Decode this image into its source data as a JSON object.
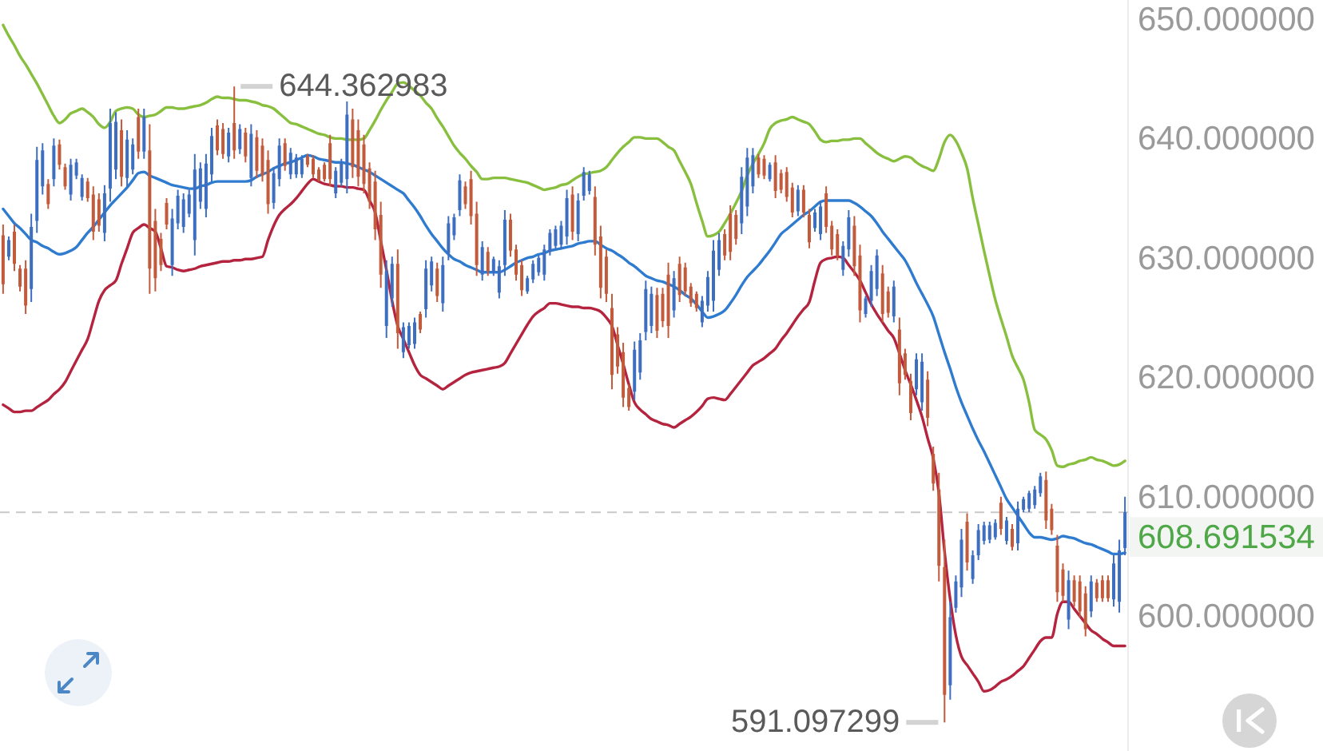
{
  "chart_data": {
    "type": "candlestick",
    "categories": [
      null,
      null,
      null,
      null,
      null,
      null,
      null,
      null,
      null,
      null,
      null,
      null,
      null,
      null,
      null,
      null,
      null,
      null,
      null,
      null,
      null,
      null,
      null,
      null,
      null,
      null,
      null,
      null,
      null,
      null,
      null,
      null,
      null,
      null,
      null,
      null,
      null,
      null,
      null,
      null,
      null,
      null,
      null,
      null,
      null,
      null,
      null,
      null,
      null,
      null,
      null,
      null,
      null,
      null,
      null,
      null,
      null,
      null,
      null,
      null,
      null,
      null,
      null,
      null,
      null,
      null,
      null,
      null,
      null,
      null,
      null,
      null,
      null,
      null,
      null,
      null,
      null,
      null,
      null,
      null,
      null,
      null,
      null,
      null,
      null,
      null,
      null,
      null,
      null,
      null,
      null,
      null,
      null,
      null,
      null,
      null,
      null,
      null,
      null,
      null,
      null,
      null,
      null,
      null,
      null,
      null,
      null,
      null,
      null,
      null,
      null,
      null,
      null,
      null,
      null,
      null,
      null,
      null,
      null,
      null,
      null,
      null,
      null,
      null,
      null,
      null,
      null,
      null,
      null,
      null,
      null,
      null,
      null,
      null,
      null,
      null,
      null,
      null,
      null,
      null,
      null,
      null,
      null,
      null,
      null,
      null,
      null,
      null,
      null,
      null,
      null,
      null,
      null,
      null,
      null,
      null,
      null,
      null,
      null,
      null,
      null,
      null,
      null,
      null,
      null,
      null,
      null,
      null,
      null,
      null,
      null,
      null,
      null,
      null,
      null,
      null,
      null,
      null,
      null,
      null,
      null,
      null,
      null,
      null,
      null,
      null,
      null,
      null,
      null,
      null,
      null,
      null,
      null,
      null,
      null,
      null,
      null,
      null,
      null,
      null
    ],
    "ohlc": [
      [
        631.9,
        632.8,
        627.0,
        627.8
      ],
      [
        630.1,
        631.8,
        629.8,
        631.5
      ],
      [
        632.2,
        632.8,
        628.9,
        629.5
      ],
      [
        629.1,
        629.4,
        627.2,
        627.6
      ],
      [
        629.1,
        629.8,
        625.3,
        626.0
      ],
      [
        627.4,
        633.7,
        626.3,
        632.6
      ],
      [
        633.1,
        639.3,
        632.1,
        638.2
      ],
      [
        636.0,
        639.6,
        635.3,
        639.0
      ],
      [
        636.2,
        636.6,
        634.1,
        634.5
      ],
      [
        636.6,
        640.0,
        636.0,
        639.4
      ],
      [
        639.5,
        639.9,
        637.4,
        637.8
      ],
      [
        637.6,
        637.9,
        635.7,
        636.0
      ],
      [
        635.3,
        638.3,
        634.8,
        637.8
      ],
      [
        636.9,
        638.3,
        636.6,
        638.0
      ],
      [
        635.1,
        637.0,
        634.8,
        636.7
      ],
      [
        636.4,
        636.7,
        634.7,
        635.0
      ],
      [
        635.3,
        636.0,
        631.5,
        632.2
      ],
      [
        634.9,
        635.4,
        632.2,
        632.7
      ],
      [
        632.1,
        636.1,
        631.4,
        635.4
      ],
      [
        635.8,
        642.5,
        634.7,
        641.3
      ],
      [
        637.4,
        642.2,
        636.6,
        641.4
      ],
      [
        640.7,
        641.6,
        636.0,
        636.8
      ],
      [
        636.7,
        640.7,
        636.0,
        639.9
      ],
      [
        637.4,
        640.0,
        637.0,
        639.5
      ],
      [
        641.8,
        642.5,
        638.3,
        638.9
      ],
      [
        638.9,
        642.5,
        638.3,
        641.8
      ],
      [
        639.0,
        641.2,
        627.0,
        629.1
      ],
      [
        633.1,
        634.1,
        627.2,
        628.3
      ],
      [
        631.6,
        632.1,
        628.9,
        629.4
      ],
      [
        634.6,
        635.0,
        632.4,
        632.8
      ],
      [
        629.4,
        634.1,
        628.5,
        633.3
      ],
      [
        632.9,
        635.7,
        632.4,
        635.2
      ],
      [
        632.6,
        635.4,
        632.1,
        634.9
      ],
      [
        633.7,
        635.7,
        633.4,
        635.3
      ],
      [
        631.5,
        638.7,
        630.2,
        637.4
      ],
      [
        634.7,
        638.0,
        634.1,
        637.5
      ],
      [
        634.1,
        638.7,
        633.4,
        637.9
      ],
      [
        637.0,
        640.9,
        636.4,
        640.2
      ],
      [
        641.1,
        641.6,
        638.6,
        639.0
      ],
      [
        640.8,
        641.3,
        638.3,
        638.7
      ],
      [
        638.5,
        640.9,
        638.0,
        640.5
      ],
      [
        641.3,
        644.362983,
        638.3,
        639.0
      ],
      [
        639.1,
        641.2,
        638.7,
        640.8
      ],
      [
        640.5,
        640.9,
        638.0,
        638.5
      ],
      [
        636.7,
        641.2,
        636.0,
        640.4
      ],
      [
        640.1,
        640.7,
        636.7,
        637.3
      ],
      [
        639.4,
        640.0,
        636.4,
        636.9
      ],
      [
        638.2,
        639.0,
        633.7,
        634.5
      ],
      [
        634.6,
        637.6,
        634.1,
        637.1
      ],
      [
        636.6,
        640.0,
        636.0,
        639.4
      ],
      [
        639.6,
        640.0,
        637.3,
        637.7
      ],
      [
        637.0,
        639.2,
        636.6,
        638.8
      ],
      [
        637.0,
        638.7,
        636.7,
        638.4
      ],
      [
        637.0,
        638.6,
        636.7,
        638.3
      ],
      [
        638.5,
        638.7,
        637.6,
        637.8
      ],
      [
        638.3,
        638.6,
        636.7,
        637.0
      ],
      [
        637.4,
        637.6,
        636.4,
        636.5
      ],
      [
        637.8,
        638.0,
        636.4,
        636.6
      ],
      [
        639.6,
        640.3,
        636.0,
        636.6
      ],
      [
        635.4,
        637.6,
        635.0,
        637.3
      ],
      [
        636.3,
        638.3,
        636.0,
        637.9
      ],
      [
        636.6,
        643.1,
        635.4,
        642.0
      ],
      [
        641.6,
        642.5,
        636.7,
        637.6
      ],
      [
        640.7,
        641.6,
        636.0,
        636.8
      ],
      [
        639.5,
        640.3,
        635.4,
        636.2
      ],
      [
        637.5,
        638.0,
        634.1,
        634.7
      ],
      [
        636.4,
        637.3,
        631.5,
        632.4
      ],
      [
        633.6,
        634.7,
        627.5,
        628.6
      ],
      [
        624.3,
        629.8,
        623.3,
        628.9
      ],
      [
        626.6,
        630.1,
        625.9,
        629.5
      ],
      [
        629.5,
        630.7,
        622.4,
        623.7
      ],
      [
        622.1,
        624.6,
        621.6,
        624.2
      ],
      [
        622.7,
        624.6,
        622.4,
        624.3
      ],
      [
        622.8,
        625.0,
        622.4,
        624.6
      ],
      [
        625.3,
        625.5,
        623.7,
        624.0
      ],
      [
        625.7,
        629.8,
        625.0,
        629.1
      ],
      [
        627.7,
        630.1,
        627.2,
        629.7
      ],
      [
        629.1,
        629.6,
        626.3,
        626.8
      ],
      [
        626.2,
        630.1,
        625.5,
        629.4
      ],
      [
        630.4,
        633.5,
        629.8,
        632.9
      ],
      [
        631.9,
        633.7,
        631.5,
        633.4
      ],
      [
        634.0,
        637.0,
        633.5,
        636.5
      ],
      [
        636.0,
        636.4,
        634.1,
        634.5
      ],
      [
        636.6,
        637.3,
        632.8,
        633.5
      ],
      [
        633.7,
        634.7,
        628.5,
        629.4
      ],
      [
        628.6,
        631.4,
        628.1,
        630.9
      ],
      [
        630.5,
        630.9,
        628.5,
        628.9
      ],
      [
        628.8,
        630.1,
        628.5,
        629.9
      ],
      [
        627.1,
        629.8,
        626.6,
        629.3
      ],
      [
        629.4,
        634.0,
        628.5,
        633.2
      ],
      [
        633.2,
        633.7,
        630.1,
        630.6
      ],
      [
        630.7,
        631.1,
        628.1,
        628.6
      ],
      [
        629.4,
        629.8,
        626.8,
        627.3
      ],
      [
        627.2,
        628.5,
        627.0,
        628.3
      ],
      [
        628.2,
        629.8,
        627.9,
        629.5
      ],
      [
        628.8,
        630.2,
        628.5,
        630.0
      ],
      [
        628.6,
        631.1,
        628.1,
        630.7
      ],
      [
        630.5,
        632.4,
        630.2,
        632.1
      ],
      [
        631.0,
        632.7,
        630.7,
        632.4
      ],
      [
        631.1,
        633.1,
        630.7,
        632.7
      ],
      [
        631.8,
        635.7,
        631.1,
        635.0
      ],
      [
        635.3,
        636.0,
        631.5,
        632.2
      ],
      [
        632.0,
        635.4,
        631.4,
        634.8
      ],
      [
        635.2,
        637.6,
        634.8,
        637.2
      ],
      [
        635.6,
        637.3,
        635.3,
        637.0
      ],
      [
        635.1,
        636.0,
        630.2,
        631.1
      ],
      [
        631.8,
        632.7,
        626.6,
        627.5
      ],
      [
        630.1,
        630.7,
        626.3,
        627.0
      ],
      [
        625.8,
        627.0,
        619.0,
        620.2
      ],
      [
        623.6,
        624.2,
        620.3,
        620.9
      ],
      [
        622.1,
        622.9,
        617.5,
        618.3
      ],
      [
        619.1,
        619.4,
        617.2,
        617.5
      ],
      [
        618.8,
        623.0,
        618.1,
        622.3
      ],
      [
        620.4,
        623.7,
        619.8,
        623.1
      ],
      [
        623.8,
        628.1,
        623.1,
        627.4
      ],
      [
        624.3,
        627.6,
        623.7,
        627.0
      ],
      [
        626.9,
        627.5,
        623.3,
        623.9
      ],
      [
        627.0,
        627.5,
        624.2,
        624.7
      ],
      [
        628.6,
        629.6,
        623.3,
        624.3
      ],
      [
        625.6,
        628.9,
        625.0,
        628.3
      ],
      [
        629.5,
        630.1,
        626.3,
        626.9
      ],
      [
        629.2,
        629.6,
        626.8,
        627.2
      ],
      [
        627.6,
        627.9,
        625.9,
        626.2
      ],
      [
        627.0,
        627.2,
        625.5,
        625.8
      ],
      [
        624.6,
        626.8,
        624.2,
        626.4
      ],
      [
        626.0,
        628.9,
        625.5,
        628.4
      ],
      [
        626.4,
        631.5,
        625.5,
        630.6
      ],
      [
        629.0,
        632.1,
        628.5,
        631.5
      ],
      [
        632.0,
        632.4,
        629.8,
        630.2
      ],
      [
        633.7,
        634.4,
        629.8,
        630.5
      ],
      [
        633.6,
        634.0,
        631.1,
        631.6
      ],
      [
        632.9,
        637.6,
        632.0,
        636.8
      ],
      [
        634.3,
        639.2,
        633.5,
        638.4
      ],
      [
        636.0,
        639.2,
        635.4,
        638.6
      ],
      [
        638.4,
        638.7,
        636.7,
        637.0
      ],
      [
        638.3,
        638.6,
        636.6,
        636.9
      ],
      [
        636.6,
        638.0,
        636.4,
        637.8
      ],
      [
        638.0,
        638.6,
        635.0,
        635.6
      ],
      [
        637.1,
        637.4,
        635.4,
        635.7
      ],
      [
        637.2,
        637.6,
        634.7,
        635.1
      ],
      [
        635.9,
        636.3,
        633.4,
        633.8
      ],
      [
        633.9,
        636.1,
        633.5,
        635.7
      ],
      [
        635.7,
        636.1,
        633.4,
        633.8
      ],
      [
        633.6,
        634.1,
        630.8,
        631.3
      ],
      [
        632.5,
        634.1,
        632.2,
        633.8
      ],
      [
        632.0,
        634.8,
        631.5,
        634.3
      ],
      [
        635.4,
        636.0,
        632.1,
        632.6
      ],
      [
        632.7,
        633.1,
        630.2,
        630.7
      ],
      [
        632.0,
        632.4,
        629.8,
        630.2
      ],
      [
        629.0,
        631.4,
        628.5,
        631.0
      ],
      [
        630.7,
        634.0,
        630.1,
        633.4
      ],
      [
        632.7,
        633.5,
        628.5,
        629.3
      ],
      [
        630.2,
        631.1,
        624.6,
        625.6
      ],
      [
        625.3,
        626.8,
        625.0,
        626.6
      ],
      [
        626.4,
        629.4,
        625.9,
        628.9
      ],
      [
        627.4,
        630.7,
        626.8,
        630.2
      ],
      [
        628.7,
        629.4,
        624.6,
        625.3
      ],
      [
        627.2,
        627.6,
        625.0,
        625.4
      ],
      [
        625.1,
        628.1,
        624.6,
        627.6
      ],
      [
        624.0,
        625.0,
        618.5,
        619.5
      ],
      [
        622.0,
        622.4,
        619.8,
        620.2
      ],
      [
        619.7,
        620.3,
        616.4,
        617.0
      ],
      [
        619.0,
        622.0,
        618.5,
        621.5
      ],
      [
        617.9,
        622.0,
        617.2,
        621.3
      ],
      [
        619.8,
        620.5,
        615.9,
        616.6
      ],
      [
        613.6,
        614.2,
        610.5,
        611.1
      ],
      [
        610.6,
        612.0,
        602.9,
        604.2
      ],
      [
        604.1,
        606.4,
        591.097299,
        593.4
      ],
      [
        594.2,
        601.2,
        593.0,
        599.9
      ],
      [
        600.7,
        603.4,
        600.3,
        602.9
      ],
      [
        602.4,
        607.3,
        601.6,
        606.4
      ],
      [
        607.9,
        608.6,
        603.8,
        604.5
      ],
      [
        603.1,
        605.5,
        602.7,
        605.1
      ],
      [
        605.1,
        607.7,
        604.7,
        607.2
      ],
      [
        606.3,
        607.9,
        606.0,
        607.6
      ],
      [
        606.4,
        607.9,
        606.1,
        607.6
      ],
      [
        606.6,
        608.1,
        606.4,
        607.8
      ],
      [
        609.5,
        610.0,
        606.8,
        607.3
      ],
      [
        606.3,
        608.3,
        606.0,
        608.0
      ],
      [
        607.3,
        607.7,
        605.5,
        605.8
      ],
      [
        606.1,
        609.6,
        605.5,
        609.0
      ],
      [
        608.9,
        610.0,
        608.7,
        609.8
      ],
      [
        609.0,
        610.5,
        608.7,
        610.3
      ],
      [
        609.3,
        610.9,
        609.0,
        610.6
      ],
      [
        610.3,
        612.0,
        610.0,
        611.7
      ],
      [
        611.4,
        612.1,
        607.3,
        608.0
      ],
      [
        609.0,
        609.4,
        606.8,
        607.2
      ],
      [
        605.9,
        606.8,
        601.2,
        602.0
      ],
      [
        603.9,
        604.4,
        601.2,
        601.7
      ],
      [
        599.7,
        603.8,
        598.9,
        603.0
      ],
      [
        603.0,
        603.4,
        600.8,
        601.2
      ],
      [
        602.9,
        603.4,
        599.9,
        600.4
      ],
      [
        601.9,
        602.5,
        598.3,
        598.9
      ],
      [
        600.4,
        603.4,
        599.9,
        602.9
      ],
      [
        602.8,
        603.1,
        601.2,
        601.5
      ],
      [
        603.0,
        603.4,
        601.2,
        601.5
      ],
      [
        603.0,
        603.4,
        601.2,
        601.5
      ],
      [
        601.4,
        605.1,
        600.8,
        604.4
      ],
      [
        601.2,
        606.4,
        600.3,
        605.5
      ],
      [
        605.7,
        610.0,
        605.1,
        608.691534
      ]
    ],
    "colors": [
      "#c25a3c",
      "#3d6ec0",
      "#c25a3c",
      "#c25a3c",
      "#c25a3c",
      "#3d6ec0",
      "#3d6ec0",
      "#3d6ec0",
      "#c25a3c",
      "#3d6ec0",
      "#c25a3c",
      "#c25a3c",
      "#3d6ec0",
      "#3d6ec0",
      "#3d6ec0",
      "#c25a3c",
      "#c25a3c",
      "#c25a3c",
      "#3d6ec0",
      "#3d6ec0",
      "#3d6ec0",
      "#c25a3c",
      "#3d6ec0",
      "#3d6ec0",
      "#c25a3c",
      "#3d6ec0",
      "#c25a3c",
      "#c25a3c",
      "#c25a3c",
      "#c25a3c",
      "#3d6ec0",
      "#3d6ec0",
      "#3d6ec0",
      "#3d6ec0",
      "#3d6ec0",
      "#3d6ec0",
      "#3d6ec0",
      "#3d6ec0",
      "#c25a3c",
      "#c25a3c",
      "#3d6ec0",
      "#c25a3c",
      "#3d6ec0",
      "#c25a3c",
      "#3d6ec0",
      "#c25a3c",
      "#c25a3c",
      "#c25a3c",
      "#3d6ec0",
      "#3d6ec0",
      "#c25a3c",
      "#3d6ec0",
      "#3d6ec0",
      "#3d6ec0",
      "#c25a3c",
      "#c25a3c",
      "#c25a3c",
      "#c25a3c",
      "#c25a3c",
      "#3d6ec0",
      "#3d6ec0",
      "#3d6ec0",
      "#c25a3c",
      "#c25a3c",
      "#c25a3c",
      "#c25a3c",
      "#c25a3c",
      "#c25a3c",
      "#3d6ec0",
      "#3d6ec0",
      "#c25a3c",
      "#3d6ec0",
      "#3d6ec0",
      "#3d6ec0",
      "#c25a3c",
      "#3d6ec0",
      "#3d6ec0",
      "#c25a3c",
      "#3d6ec0",
      "#3d6ec0",
      "#3d6ec0",
      "#3d6ec0",
      "#c25a3c",
      "#c25a3c",
      "#c25a3c",
      "#3d6ec0",
      "#c25a3c",
      "#3d6ec0",
      "#3d6ec0",
      "#3d6ec0",
      "#c25a3c",
      "#c25a3c",
      "#c25a3c",
      "#3d6ec0",
      "#3d6ec0",
      "#3d6ec0",
      "#3d6ec0",
      "#3d6ec0",
      "#3d6ec0",
      "#3d6ec0",
      "#3d6ec0",
      "#c25a3c",
      "#3d6ec0",
      "#3d6ec0",
      "#3d6ec0",
      "#c25a3c",
      "#c25a3c",
      "#c25a3c",
      "#c25a3c",
      "#c25a3c",
      "#c25a3c",
      "#c25a3c",
      "#3d6ec0",
      "#3d6ec0",
      "#3d6ec0",
      "#3d6ec0",
      "#c25a3c",
      "#c25a3c",
      "#c25a3c",
      "#3d6ec0",
      "#c25a3c",
      "#c25a3c",
      "#c25a3c",
      "#c25a3c",
      "#3d6ec0",
      "#3d6ec0",
      "#3d6ec0",
      "#3d6ec0",
      "#c25a3c",
      "#c25a3c",
      "#c25a3c",
      "#3d6ec0",
      "#3d6ec0",
      "#3d6ec0",
      "#c25a3c",
      "#c25a3c",
      "#3d6ec0",
      "#c25a3c",
      "#c25a3c",
      "#c25a3c",
      "#c25a3c",
      "#3d6ec0",
      "#c25a3c",
      "#c25a3c",
      "#3d6ec0",
      "#3d6ec0",
      "#c25a3c",
      "#c25a3c",
      "#c25a3c",
      "#3d6ec0",
      "#3d6ec0",
      "#c25a3c",
      "#c25a3c",
      "#3d6ec0",
      "#3d6ec0",
      "#3d6ec0",
      "#c25a3c",
      "#c25a3c",
      "#3d6ec0",
      "#c25a3c",
      "#c25a3c",
      "#c25a3c",
      "#3d6ec0",
      "#3d6ec0",
      "#c25a3c",
      "#c25a3c",
      "#c25a3c",
      "#c25a3c",
      "#3d6ec0",
      "#3d6ec0",
      "#3d6ec0",
      "#c25a3c",
      "#3d6ec0",
      "#3d6ec0",
      "#3d6ec0",
      "#3d6ec0",
      "#3d6ec0",
      "#c25a3c",
      "#3d6ec0",
      "#c25a3c",
      "#3d6ec0",
      "#3d6ec0",
      "#3d6ec0",
      "#3d6ec0",
      "#3d6ec0",
      "#c25a3c",
      "#c25a3c",
      "#c25a3c",
      "#c25a3c",
      "#3d6ec0",
      "#c25a3c",
      "#c25a3c",
      "#c25a3c",
      "#3d6ec0",
      "#c25a3c",
      "#c25a3c",
      "#c25a3c",
      "#3d6ec0",
      "#3d6ec0",
      "#3d6ec0"
    ],
    "series": [
      {
        "type": "line",
        "color": "#88bf3e",
        "values": [
          649.5,
          648.6,
          647.8,
          646.9,
          646.2,
          645.4,
          644.6,
          643.7,
          642.8,
          641.9,
          641.3,
          641.6,
          642.1,
          642.3,
          642.5,
          642.2,
          641.8,
          641.2,
          640.9,
          641.4,
          642.3,
          642.5,
          642.6,
          642.5,
          642.0,
          641.8,
          641.9,
          642.0,
          642.3,
          642.6,
          642.6,
          642.5,
          642.5,
          642.6,
          642.7,
          642.8,
          643.0,
          643.3,
          643.5,
          643.4,
          643.4,
          643.3,
          643.2,
          643.2,
          643.1,
          643.0,
          642.8,
          642.7,
          642.5,
          642.1,
          641.7,
          641.3,
          641.2,
          641.0,
          640.8,
          640.6,
          640.4,
          640.3,
          640.1,
          640.0,
          640.0,
          639.9,
          639.9,
          639.9,
          640.0,
          640.7,
          641.5,
          642.4,
          643.2,
          643.9,
          644.6,
          644.7,
          644.4,
          644.0,
          643.6,
          643.0,
          642.5,
          641.7,
          641.0,
          640.2,
          639.4,
          638.8,
          638.3,
          637.7,
          637.2,
          636.6,
          636.6,
          636.7,
          636.7,
          636.7,
          636.6,
          636.5,
          636.4,
          636.3,
          636.1,
          635.9,
          635.7,
          635.8,
          635.9,
          636.1,
          636.2,
          636.5,
          636.8,
          637.0,
          637.1,
          637.2,
          637.3,
          637.6,
          638.2,
          638.8,
          639.3,
          639.7,
          640.1,
          640.1,
          640.0,
          640.0,
          640.0,
          639.7,
          639.3,
          639.0,
          638.1,
          637.2,
          636.2,
          634.6,
          633.1,
          631.8,
          631.9,
          632.2,
          632.9,
          633.7,
          634.6,
          635.6,
          636.9,
          637.9,
          638.7,
          639.6,
          640.8,
          641.3,
          641.5,
          641.6,
          641.8,
          641.6,
          641.4,
          641.2,
          640.6,
          639.9,
          639.7,
          639.8,
          639.8,
          639.9,
          639.9,
          640.0,
          640.0,
          639.6,
          639.2,
          638.8,
          638.5,
          638.3,
          638.1,
          638.3,
          638.5,
          638.4,
          638.0,
          637.7,
          637.5,
          637.3,
          638.3,
          639.7,
          640.3,
          639.8,
          638.8,
          637.5,
          635.0,
          632.8,
          630.6,
          628.5,
          626.5,
          624.9,
          623.4,
          621.8,
          620.8,
          619.8,
          617.9,
          615.6,
          615.2,
          614.8,
          613.9,
          612.6,
          612.5,
          612.7,
          612.8,
          613.0,
          613.1,
          613.3,
          613.1,
          613.0,
          612.8,
          612.6,
          612.7,
          613.0
        ]
      },
      {
        "type": "line",
        "color": "#2e7bcf",
        "values": [
          634.1,
          633.5,
          632.9,
          632.5,
          632.0,
          631.5,
          631.3,
          631.0,
          630.8,
          630.5,
          630.3,
          630.4,
          630.6,
          630.9,
          631.5,
          632.1,
          632.6,
          633.2,
          633.8,
          634.4,
          634.9,
          635.4,
          635.9,
          636.5,
          637.1,
          637.2,
          636.9,
          636.7,
          636.5,
          636.3,
          636.1,
          636.0,
          635.9,
          635.8,
          635.8,
          636.0,
          636.1,
          636.3,
          636.4,
          636.4,
          636.4,
          636.4,
          636.4,
          636.4,
          636.5,
          636.8,
          637.0,
          637.2,
          637.5,
          637.7,
          637.9,
          638.0,
          638.2,
          638.4,
          638.6,
          638.5,
          638.3,
          638.2,
          638.1,
          638.0,
          638.0,
          637.9,
          637.8,
          637.6,
          637.4,
          637.2,
          636.9,
          636.6,
          636.3,
          636.0,
          635.7,
          635.4,
          634.8,
          634.2,
          633.5,
          632.7,
          632.0,
          631.4,
          630.8,
          630.3,
          629.9,
          629.7,
          629.4,
          629.2,
          629.0,
          628.8,
          628.8,
          628.8,
          628.8,
          629.0,
          629.3,
          629.6,
          629.8,
          630.0,
          630.1,
          630.3,
          630.4,
          630.6,
          630.7,
          630.8,
          630.9,
          631.0,
          631.2,
          631.3,
          631.4,
          631.4,
          631.1,
          630.8,
          630.6,
          630.3,
          630.0,
          629.6,
          629.3,
          628.9,
          628.5,
          628.3,
          628.1,
          628.0,
          627.8,
          627.6,
          627.3,
          626.9,
          626.6,
          626.1,
          625.5,
          625.0,
          625.1,
          625.3,
          625.6,
          626.2,
          626.9,
          627.7,
          628.4,
          628.9,
          629.4,
          630.0,
          630.6,
          631.3,
          632.0,
          632.4,
          632.8,
          633.2,
          633.6,
          633.9,
          634.3,
          634.7,
          634.8,
          634.8,
          634.8,
          634.8,
          634.8,
          634.6,
          634.3,
          633.9,
          633.5,
          632.9,
          632.2,
          631.6,
          631.0,
          630.4,
          629.8,
          628.9,
          627.9,
          627.0,
          626.1,
          625.1,
          623.6,
          622.1,
          620.7,
          619.2,
          617.9,
          616.8,
          615.7,
          614.7,
          613.8,
          612.8,
          611.8,
          610.8,
          609.8,
          609.1,
          608.4,
          607.7,
          607.0,
          606.6,
          606.6,
          606.5,
          606.4,
          606.5,
          606.7,
          606.6,
          606.5,
          606.3,
          606.1,
          606.0,
          605.8,
          605.6,
          605.4,
          605.2,
          605.2,
          605.3
        ]
      },
      {
        "type": "line",
        "color": "#b5243f",
        "values": [
          617.7,
          617.4,
          617.1,
          617.1,
          617.2,
          617.2,
          617.5,
          617.8,
          618.1,
          618.6,
          619.0,
          619.6,
          620.5,
          621.4,
          622.3,
          623.2,
          624.8,
          626.4,
          627.3,
          627.7,
          628.1,
          629.5,
          630.8,
          632.1,
          632.5,
          632.8,
          632.5,
          632.2,
          630.8,
          629.3,
          629.2,
          629.0,
          628.9,
          629.0,
          629.1,
          629.3,
          629.4,
          629.5,
          629.6,
          629.7,
          629.7,
          629.8,
          629.8,
          629.9,
          629.9,
          630.0,
          630.1,
          631.5,
          632.7,
          633.6,
          634.1,
          634.5,
          635.0,
          635.6,
          636.2,
          636.6,
          636.4,
          636.2,
          636.1,
          636.0,
          636.0,
          635.9,
          635.9,
          635.8,
          635.7,
          634.8,
          633.8,
          631.4,
          629.0,
          626.4,
          624.3,
          623.2,
          622.1,
          621.0,
          620.2,
          619.9,
          619.6,
          619.3,
          619.0,
          619.3,
          619.6,
          619.9,
          620.2,
          620.4,
          620.5,
          620.6,
          620.7,
          620.8,
          620.9,
          621.2,
          622.0,
          622.8,
          623.6,
          624.4,
          625.1,
          625.5,
          625.8,
          626.2,
          626.2,
          626.1,
          626.0,
          625.9,
          625.9,
          625.8,
          625.8,
          625.7,
          625.5,
          625.0,
          624.3,
          622.7,
          621.1,
          619.4,
          617.9,
          617.3,
          616.9,
          616.5,
          616.3,
          616.1,
          616.0,
          615.8,
          616.1,
          616.4,
          616.7,
          617.1,
          617.6,
          618.2,
          618.3,
          618.2,
          618.1,
          618.6,
          619.2,
          619.8,
          620.4,
          621.0,
          621.3,
          621.6,
          622.0,
          622.4,
          623.1,
          623.7,
          624.4,
          625.1,
          625.7,
          626.3,
          628.1,
          629.6,
          629.9,
          630.0,
          630.1,
          630.0,
          629.4,
          628.8,
          628.1,
          627.1,
          626.1,
          625.3,
          624.6,
          623.9,
          623.3,
          622.0,
          620.6,
          619.4,
          618.1,
          616.7,
          614.9,
          613.2,
          610.3,
          605.4,
          601.4,
          598.4,
          596.6,
          595.9,
          595.2,
          594.5,
          593.7,
          593.8,
          594.1,
          594.5,
          594.7,
          595.0,
          595.4,
          595.8,
          596.5,
          597.2,
          597.9,
          598.2,
          598.2,
          600.2,
          601.2,
          601.2,
          600.6,
          600.0,
          599.4,
          598.8,
          598.5,
          598.1,
          597.8,
          597.5,
          597.5,
          597.5
        ]
      }
    ],
    "ylim": [
      588.7,
      651.6
    ],
    "yticks": [
      {
        "value": 600,
        "label": "600.000000"
      },
      {
        "value": 610,
        "label": "610.000000"
      },
      {
        "value": 620,
        "label": "620.000000"
      },
      {
        "value": 630,
        "label": "630.000000"
      },
      {
        "value": 640,
        "label": "640.000000"
      },
      {
        "value": 650,
        "label": "650.000000"
      }
    ],
    "tick_labels": "y",
    "ref_lines": [
      {
        "axis": "y",
        "value": 608.691534,
        "label": "608.691534",
        "color": "#c9c9c9",
        "line_style": "dashed"
      }
    ],
    "annotations": [
      "644.362983",
      "591.097299"
    ]
  }
}
